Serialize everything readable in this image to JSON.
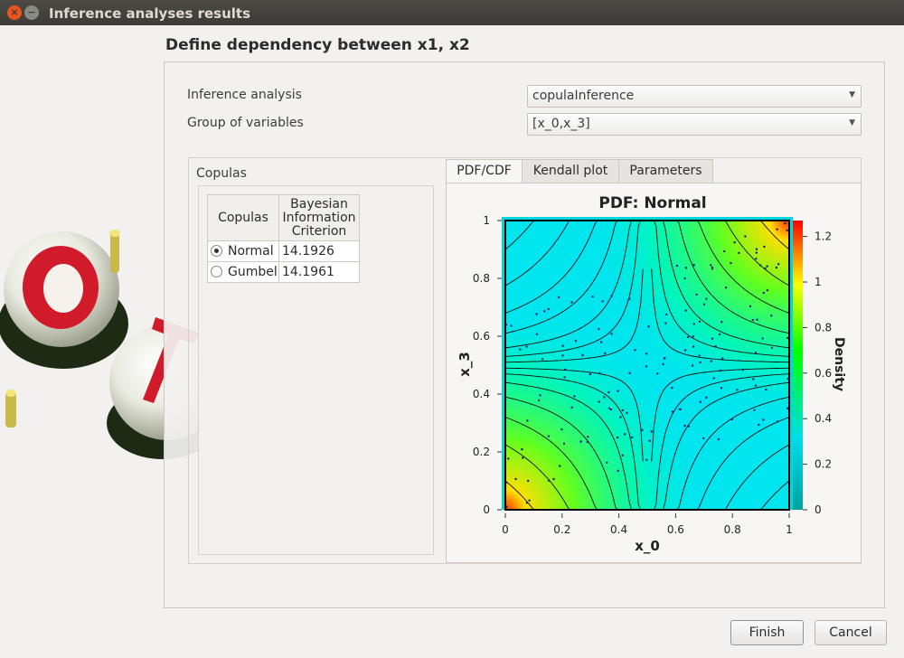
{
  "window": {
    "title": "Inference analyses results",
    "close_glyph": "×",
    "minimize_glyph": "−"
  },
  "page": {
    "heading": "Define dependency between x1, x2"
  },
  "form": {
    "inference_label": "Inference analysis",
    "inference_value": "copulaInference",
    "group_label": "Group of variables",
    "group_value": "[x_0,x_3]"
  },
  "copulas": {
    "title": "Copulas",
    "columns": [
      "Copulas",
      "Bayesian Information Criterion"
    ],
    "rows": [
      {
        "name": "Normal",
        "bic": "14.1926",
        "selected": true
      },
      {
        "name": "Gumbel",
        "bic": "14.1961",
        "selected": false
      }
    ]
  },
  "tabs": [
    {
      "label": "PDF/CDF",
      "active": true
    },
    {
      "label": "Kendall plot",
      "active": false
    },
    {
      "label": "Parameters",
      "active": false
    }
  ],
  "chart_data": {
    "type": "heatmap",
    "title": "PDF: Normal",
    "xlabel": "x_0",
    "ylabel": "x_3",
    "colorbar_label": "Density",
    "xlim": [
      0,
      1
    ],
    "ylim": [
      0,
      1
    ],
    "x_ticks": [
      "0",
      "0.2",
      "0.4",
      "0.6",
      "0.8",
      "1"
    ],
    "y_ticks": [
      "0",
      "0.2",
      "0.4",
      "0.6",
      "0.8",
      "1"
    ],
    "colorbar_ticks": [
      "0",
      "0.2",
      "0.4",
      "0.6",
      "0.8",
      "1",
      "1.2"
    ],
    "colorbar_range": [
      0,
      1.27
    ],
    "colormap": [
      "#00a0a0",
      "#00e5ee",
      "#00ff00",
      "#ffff00",
      "#ff0000"
    ],
    "contours": true,
    "sample_points": true
  },
  "buttons": {
    "finish": "Finish",
    "cancel": "Cancel"
  },
  "colors": {
    "accent": "#e9541f",
    "titlebar": "#3c3b37"
  }
}
